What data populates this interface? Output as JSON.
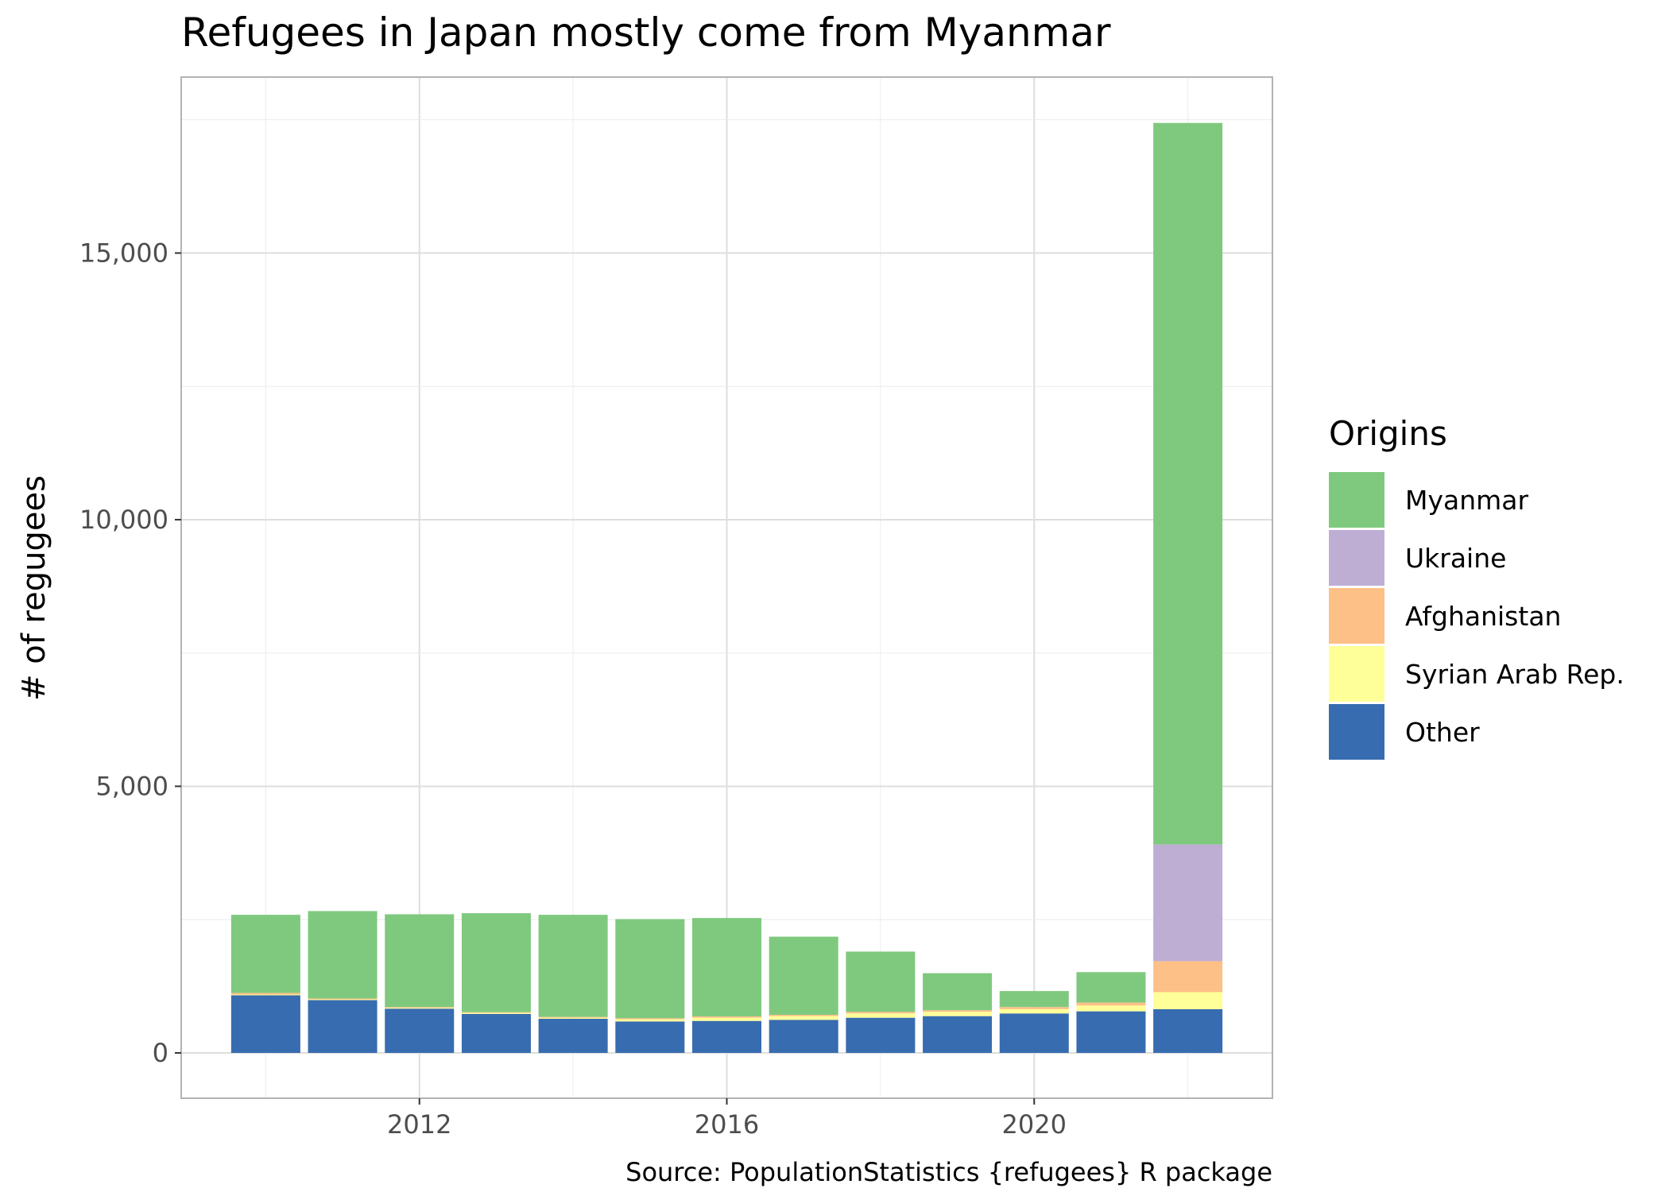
{
  "chart_data": {
    "type": "bar",
    "stacked": true,
    "title": "Refugees in Japan mostly come from Myanmar",
    "xlabel": "",
    "ylabel": "# of regugees",
    "caption": "Source: PopulationStatistics {refugees} R package",
    "x": [
      2010,
      2011,
      2012,
      2013,
      2014,
      2015,
      2016,
      2017,
      2018,
      2019,
      2020,
      2021,
      2022
    ],
    "xlim": [
      2008.9,
      2023.1
    ],
    "ylim": [
      -850,
      18300
    ],
    "x_ticks": [
      2012,
      2016,
      2020
    ],
    "x_tick_labels": [
      "2012",
      "2016",
      "2020"
    ],
    "y_ticks": [
      0,
      5000,
      10000,
      15000
    ],
    "y_tick_labels": [
      "0",
      "5,000",
      "10,000",
      "15,000"
    ],
    "grid": true,
    "legend": {
      "title": "Origins",
      "placement": "right",
      "entries": [
        "Myanmar",
        "Ukraine",
        "Afghanistan",
        "Syrian Arab Rep.",
        "Other"
      ]
    },
    "series": [
      {
        "name": "Other",
        "color": "#386CB0",
        "values": [
          1080,
          990,
          830,
          730,
          640,
          590,
          600,
          620,
          660,
          690,
          740,
          780,
          820
        ]
      },
      {
        "name": "Syrian Arab Rep.",
        "color": "#FFFF99",
        "values": [
          15,
          15,
          15,
          20,
          20,
          40,
          60,
          70,
          80,
          80,
          80,
          110,
          320
        ]
      },
      {
        "name": "Afghanistan",
        "color": "#FDC086",
        "values": [
          30,
          15,
          15,
          15,
          15,
          20,
          25,
          25,
          30,
          30,
          40,
          55,
          580
        ]
      },
      {
        "name": "Ukraine",
        "color": "#BEAED4",
        "values": [
          0,
          0,
          0,
          0,
          0,
          0,
          0,
          0,
          0,
          0,
          0,
          0,
          2190
        ]
      },
      {
        "name": "Myanmar",
        "color": "#7FC97F",
        "values": [
          1465,
          1640,
          1740,
          1855,
          1915,
          1860,
          1845,
          1465,
          1130,
          695,
          300,
          570,
          13530
        ]
      }
    ]
  }
}
